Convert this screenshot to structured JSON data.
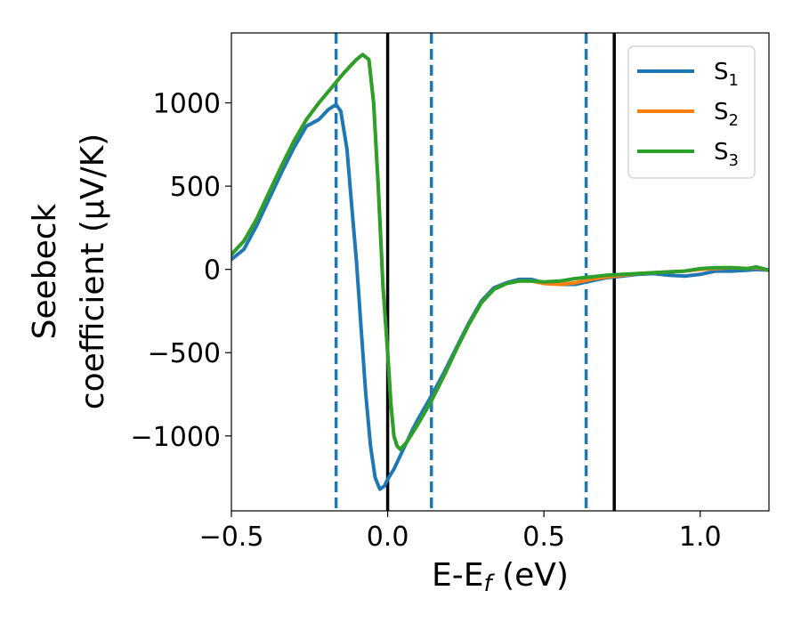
{
  "chart_data": {
    "type": "line",
    "xlabel": "E-E",
    "xlabel_sub": "f",
    "xlabel_unit": " (eV)",
    "ylabel_line1": "Seebeck",
    "ylabel_line2": "coefficient  (μV/K)",
    "xlim": [
      -0.5,
      1.22
    ],
    "ylim": [
      -1450,
      1420
    ],
    "xticks": [
      -0.5,
      0.0,
      0.5,
      1.0
    ],
    "xtick_labels": [
      "−0.5",
      "0.0",
      "0.5",
      "1.0"
    ],
    "yticks": [
      1000,
      500,
      0,
      -500,
      -1000
    ],
    "ytick_labels": [
      "1000",
      "500",
      "0",
      "−500",
      "−1000"
    ],
    "legend_position": "top-right",
    "solid_vlines": [
      0.0,
      0.725
    ],
    "dashed_vlines": [
      -0.165,
      0.14,
      0.635
    ],
    "solid_vline_color": "#000000",
    "dashed_vline_color": "#1f77b4",
    "series": [
      {
        "name": "S",
        "sub": "1",
        "color": "#1f77b4",
        "x": [
          -0.5,
          -0.46,
          -0.42,
          -0.38,
          -0.34,
          -0.3,
          -0.26,
          -0.22,
          -0.19,
          -0.165,
          -0.15,
          -0.13,
          -0.115,
          -0.1,
          -0.085,
          -0.07,
          -0.055,
          -0.04,
          -0.025,
          -0.01,
          0.0,
          0.02,
          0.04,
          0.06,
          0.08,
          0.1,
          0.14,
          0.18,
          0.22,
          0.26,
          0.3,
          0.34,
          0.38,
          0.42,
          0.46,
          0.5,
          0.55,
          0.6,
          0.65,
          0.7,
          0.75,
          0.8,
          0.85,
          0.9,
          0.95,
          1.0,
          1.05,
          1.1,
          1.15,
          1.18,
          1.22
        ],
        "y": [
          60,
          120,
          260,
          420,
          580,
          730,
          860,
          900,
          960,
          990,
          950,
          720,
          380,
          50,
          -350,
          -750,
          -1060,
          -1250,
          -1320,
          -1300,
          -1260,
          -1200,
          -1120,
          -1040,
          -960,
          -890,
          -760,
          -620,
          -470,
          -320,
          -190,
          -110,
          -80,
          -60,
          -60,
          -80,
          -90,
          -90,
          -70,
          -50,
          -40,
          -30,
          -25,
          -35,
          -40,
          -30,
          -10,
          -10,
          -5,
          0,
          -5
        ]
      },
      {
        "name": "S",
        "sub": "2",
        "color": "#ff7f0e",
        "x": [
          -0.5,
          -0.46,
          -0.42,
          -0.38,
          -0.34,
          -0.3,
          -0.26,
          -0.22,
          -0.18,
          -0.14,
          -0.1,
          -0.08,
          -0.06,
          -0.045,
          -0.03,
          -0.015,
          0.0,
          0.01,
          0.02,
          0.03,
          0.04,
          0.06,
          0.1,
          0.14,
          0.18,
          0.22,
          0.26,
          0.3,
          0.34,
          0.38,
          0.42,
          0.46,
          0.5,
          0.55,
          0.6,
          0.65,
          0.7,
          0.75,
          0.8,
          0.85,
          0.9,
          0.95,
          1.0,
          1.05,
          1.1,
          1.15,
          1.18,
          1.22
        ],
        "y": [
          90,
          170,
          300,
          460,
          620,
          770,
          900,
          1000,
          1090,
          1180,
          1260,
          1290,
          1260,
          1000,
          500,
          -100,
          -500,
          -800,
          -1000,
          -1060,
          -1080,
          -1040,
          -920,
          -790,
          -640,
          -480,
          -330,
          -200,
          -120,
          -85,
          -70,
          -70,
          -85,
          -90,
          -80,
          -60,
          -45,
          -35,
          -25,
          -20,
          -15,
          -10,
          0,
          5,
          10,
          5,
          10,
          -5
        ]
      },
      {
        "name": "S",
        "sub": "3",
        "color": "#2ca02c",
        "x": [
          -0.5,
          -0.46,
          -0.42,
          -0.38,
          -0.34,
          -0.3,
          -0.26,
          -0.22,
          -0.18,
          -0.14,
          -0.1,
          -0.08,
          -0.06,
          -0.045,
          -0.03,
          -0.015,
          0.0,
          0.01,
          0.02,
          0.03,
          0.04,
          0.06,
          0.1,
          0.14,
          0.18,
          0.22,
          0.26,
          0.3,
          0.34,
          0.38,
          0.42,
          0.46,
          0.5,
          0.55,
          0.6,
          0.65,
          0.7,
          0.75,
          0.8,
          0.85,
          0.9,
          0.95,
          1.0,
          1.05,
          1.1,
          1.15,
          1.18,
          1.22
        ],
        "y": [
          90,
          170,
          300,
          460,
          620,
          770,
          900,
          1000,
          1090,
          1180,
          1260,
          1290,
          1260,
          1000,
          500,
          -100,
          -500,
          -800,
          -1000,
          -1060,
          -1080,
          -1040,
          -920,
          -790,
          -640,
          -480,
          -330,
          -200,
          -120,
          -85,
          -70,
          -70,
          -75,
          -70,
          -55,
          -45,
          -35,
          -30,
          -25,
          -20,
          -15,
          -10,
          5,
          10,
          10,
          5,
          15,
          -5
        ]
      }
    ]
  }
}
